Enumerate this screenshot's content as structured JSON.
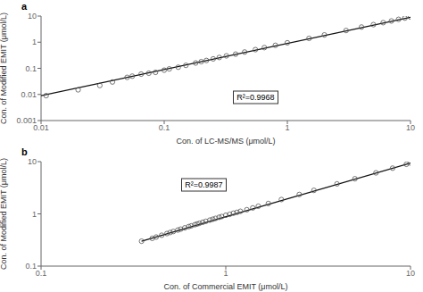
{
  "chart_data": [
    {
      "type": "scatter",
      "title": "a",
      "x_label": "Con. of LC-MS/MS (μmol/L)",
      "y_label": "Con. of Modified EMIT (μmol/L)",
      "annotations": [
        "R²=0.9968"
      ],
      "log": true,
      "grid": false,
      "xlim": [
        0.01,
        10
      ],
      "ylim": [
        0.001,
        10
      ],
      "xticks": [
        0.01,
        0.1,
        1,
        10
      ],
      "yticks": [
        0.001,
        0.01,
        0.1,
        1,
        10
      ],
      "series": [
        {
          "type": "line",
          "color": "#111111",
          "x": [
            0.01,
            10
          ],
          "values": [
            0.009,
            9.0
          ]
        },
        {
          "type": "scatter",
          "color": "#555555",
          "marker": "circle",
          "x": [
            0.011,
            0.02,
            0.03,
            0.038,
            0.05,
            0.055,
            0.065,
            0.075,
            0.085,
            0.1,
            0.11,
            0.13,
            0.15,
            0.18,
            0.2,
            0.22,
            0.25,
            0.28,
            0.32,
            0.38,
            0.45,
            0.55,
            0.65,
            0.8,
            1.0,
            1.5,
            2.0,
            3.0,
            4.0,
            5.0,
            6.0,
            7.0,
            8.0,
            9.0,
            10.0
          ],
          "values": [
            0.009,
            0.015,
            0.022,
            0.03,
            0.045,
            0.05,
            0.06,
            0.065,
            0.07,
            0.085,
            0.095,
            0.11,
            0.13,
            0.16,
            0.18,
            0.2,
            0.23,
            0.26,
            0.3,
            0.35,
            0.42,
            0.52,
            0.62,
            0.76,
            0.95,
            1.4,
            1.9,
            2.8,
            3.8,
            4.7,
            5.6,
            6.5,
            7.5,
            8.4,
            9.2
          ]
        }
      ]
    },
    {
      "type": "scatter",
      "title": "b",
      "x_label": "Con. of Commercial EMIT (μmol/L)",
      "y_label": "Con. of Modified EMIT (μmol/L)",
      "annotations": [
        "R²=0.9987"
      ],
      "log": true,
      "grid": false,
      "xlim": [
        0.1,
        10
      ],
      "ylim": [
        0.1,
        10
      ],
      "xticks": [
        0.1,
        1,
        10
      ],
      "yticks": [
        0.1,
        1,
        10
      ],
      "series": [
        {
          "type": "line",
          "color": "#111111",
          "x": [
            0.35,
            10
          ],
          "values": [
            0.3,
            9.4
          ]
        },
        {
          "type": "scatter",
          "color": "#555555",
          "marker": "circle",
          "x": [
            0.35,
            0.4,
            0.42,
            0.45,
            0.48,
            0.5,
            0.52,
            0.55,
            0.57,
            0.6,
            0.63,
            0.65,
            0.68,
            0.7,
            0.72,
            0.75,
            0.78,
            0.82,
            0.85,
            0.88,
            0.92,
            0.95,
            1.0,
            1.05,
            1.1,
            1.15,
            1.2,
            1.3,
            1.4,
            1.5,
            1.7,
            2.0,
            2.5,
            3.0,
            4.0,
            5.0,
            6.5,
            8.0,
            9.5,
            10.0
          ],
          "values": [
            0.3,
            0.34,
            0.36,
            0.39,
            0.42,
            0.44,
            0.46,
            0.49,
            0.51,
            0.54,
            0.57,
            0.59,
            0.62,
            0.64,
            0.66,
            0.69,
            0.72,
            0.76,
            0.79,
            0.82,
            0.86,
            0.89,
            0.94,
            0.98,
            1.03,
            1.07,
            1.12,
            1.2,
            1.3,
            1.4,
            1.58,
            1.88,
            2.35,
            2.82,
            3.75,
            4.7,
            6.1,
            7.5,
            8.9,
            9.4
          ]
        }
      ]
    }
  ]
}
